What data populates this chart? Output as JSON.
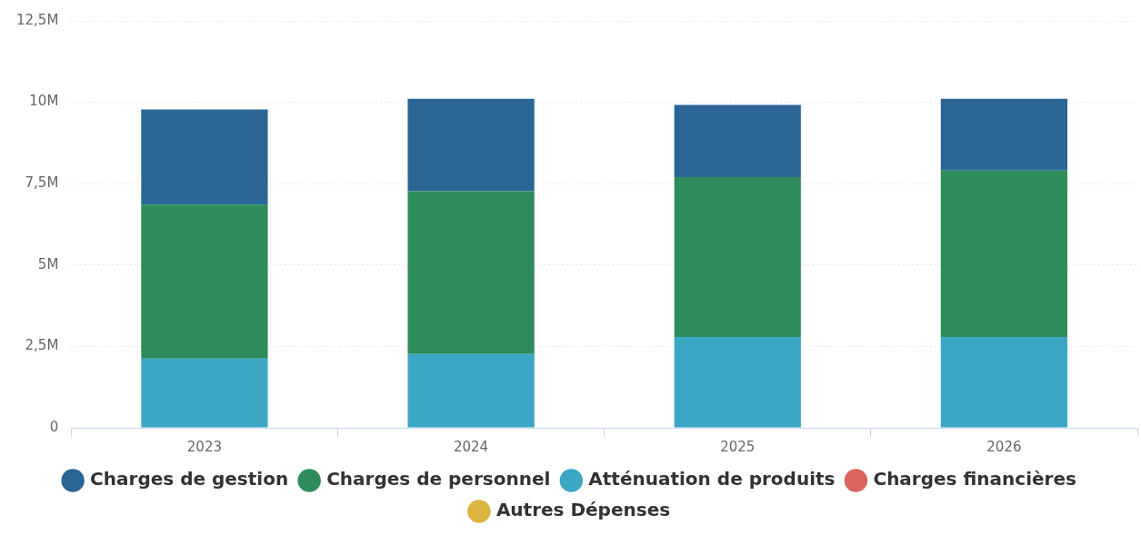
{
  "chart_data": {
    "type": "bar",
    "stacked": true,
    "categories": [
      "2023",
      "2024",
      "2025",
      "2026"
    ],
    "series": [
      {
        "name": "Autres Dépenses",
        "color": "#dcb440",
        "values": [
          0,
          0,
          0,
          0
        ]
      },
      {
        "name": "Charges financières",
        "color": "#d9645e",
        "values": [
          0,
          0,
          0,
          0
        ]
      },
      {
        "name": "Atténuation de produits",
        "color": "#3ba7c4",
        "values": [
          2.13,
          2.27,
          2.79,
          2.79
        ]
      },
      {
        "name": "Charges de personnel",
        "color": "#2e8b5a",
        "values": [
          4.73,
          5.0,
          4.91,
          5.11
        ]
      },
      {
        "name": "Charges de gestion",
        "color": "#2b6596",
        "values": [
          2.92,
          2.84,
          2.22,
          2.21
        ]
      }
    ],
    "ylim": [
      0,
      12.5
    ],
    "yticks": [
      {
        "value": 0,
        "label": "0"
      },
      {
        "value": 2.5,
        "label": "2,5M"
      },
      {
        "value": 5,
        "label": "5M"
      },
      {
        "value": 7.5,
        "label": "7,5M"
      },
      {
        "value": 10,
        "label": "10M"
      },
      {
        "value": 12.5,
        "label": "12,5M"
      }
    ],
    "grid": "y",
    "legend": "bottom"
  }
}
